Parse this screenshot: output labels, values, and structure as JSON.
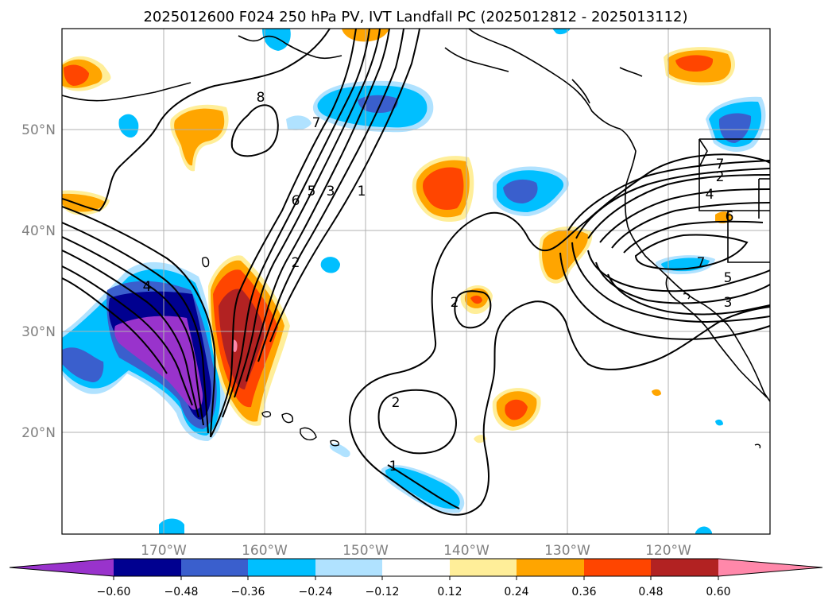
{
  "title": "2025012600 F024 250 hPa PV, IVT Landfall PC (2025012812 - 2025013112)",
  "map": {
    "lon_ticks": [
      "170°W",
      "160°W",
      "150°W",
      "140°W",
      "130°W",
      "120°W"
    ],
    "lat_ticks": [
      "50°N",
      "40°N",
      "30°N",
      "20°N"
    ],
    "grid": true,
    "tick_color": "#808080"
  },
  "colorbar": {
    "tick_labels": [
      "−0.60",
      "−0.48",
      "−0.36",
      "−0.24",
      "−0.12",
      "0.12",
      "0.24",
      "0.36",
      "0.48",
      "0.60"
    ],
    "under_color": "#9933cc",
    "over_color": "#ff88aa",
    "colors": [
      "#000090",
      "#3a5fcd",
      "#00bfff",
      "#b0e2ff",
      "#ffffff",
      "#ffee99",
      "#ffa500",
      "#ff4500",
      "#b22222"
    ]
  },
  "contour_labels": [
    "8",
    "7",
    "6",
    "5",
    "3",
    "1",
    "2",
    "4",
    "2",
    "2",
    "1",
    "7",
    "2",
    "4",
    "6",
    "7",
    "5",
    "3"
  ]
}
